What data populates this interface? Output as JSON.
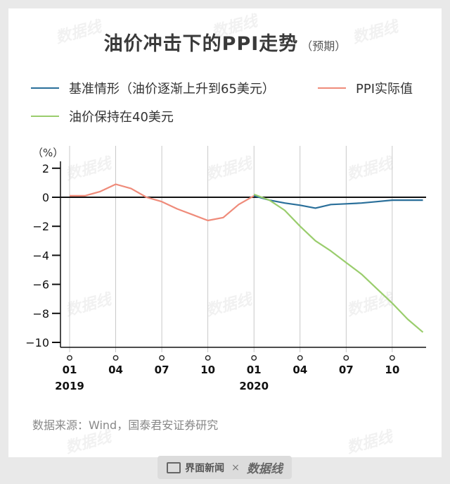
{
  "title": "油价冲击下的PPI走势",
  "subtitle": "（预期）",
  "source": "数据来源：Wind，国泰君安证券研究",
  "footer": {
    "brand1": "界面新闻",
    "sep": "×",
    "brand2": "数据线"
  },
  "watermark": "数据线",
  "colors": {
    "baseline": "#2a6f9a",
    "ppi": "#ef8b7a",
    "oil40": "#9acd6d",
    "axis": "#111111",
    "grid": "#bbbbbb"
  },
  "chart_data": {
    "type": "line",
    "y_unit": "（%）",
    "ylim": [
      -10,
      2
    ],
    "y_ticks": [
      2,
      0,
      -2,
      -4,
      -6,
      -8,
      -10
    ],
    "y_tick_labels": [
      "2",
      "0",
      "−2",
      "−4",
      "−6",
      "−8",
      "−10"
    ],
    "x_ticks": [
      {
        "month": "2019-01",
        "label": "01",
        "year": "2019"
      },
      {
        "month": "2019-04",
        "label": "04",
        "year": ""
      },
      {
        "month": "2019-07",
        "label": "07",
        "year": ""
      },
      {
        "month": "2019-10",
        "label": "10",
        "year": ""
      },
      {
        "month": "2020-01",
        "label": "01",
        "year": "2020"
      },
      {
        "month": "2020-04",
        "label": "04",
        "year": ""
      },
      {
        "month": "2020-07",
        "label": "07",
        "year": ""
      },
      {
        "month": "2020-10",
        "label": "10",
        "year": ""
      }
    ],
    "series": [
      {
        "name": "PPI实际值",
        "color": "#ef8b7a",
        "x": [
          "2019-01",
          "2019-02",
          "2019-03",
          "2019-04",
          "2019-05",
          "2019-06",
          "2019-07",
          "2019-08",
          "2019-09",
          "2019-10",
          "2019-11",
          "2019-12",
          "2020-01"
        ],
        "values": [
          0.1,
          0.1,
          0.4,
          0.9,
          0.6,
          0.0,
          -0.3,
          -0.8,
          -1.2,
          -1.6,
          -1.4,
          -0.5,
          0.1
        ]
      },
      {
        "name": "基准情形（油价逐渐上升到65美元）",
        "color": "#2a6f9a",
        "x": [
          "2020-01",
          "2020-02",
          "2020-03",
          "2020-04",
          "2020-05",
          "2020-06",
          "2020-07",
          "2020-08",
          "2020-09",
          "2020-10",
          "2020-11",
          "2020-12"
        ],
        "values": [
          0.1,
          -0.2,
          -0.4,
          -0.55,
          -0.75,
          -0.5,
          -0.45,
          -0.4,
          -0.3,
          -0.2,
          -0.2,
          -0.2
        ]
      },
      {
        "name": "油价保持在40美元",
        "color": "#9acd6d",
        "x": [
          "2020-01",
          "2020-02",
          "2020-03",
          "2020-04",
          "2020-05",
          "2020-06",
          "2020-07",
          "2020-08",
          "2020-09",
          "2020-10",
          "2020-11",
          "2020-12"
        ],
        "values": [
          0.2,
          -0.2,
          -0.9,
          -2.0,
          -3.0,
          -3.7,
          -4.5,
          -5.3,
          -6.3,
          -7.3,
          -8.4,
          -9.3
        ]
      }
    ],
    "legend": [
      {
        "label": "基准情形（油价逐渐上升到65美元）",
        "color": "#2a6f9a"
      },
      {
        "label": "PPI实际值",
        "color": "#ef8b7a"
      },
      {
        "label": "油价保持在40美元",
        "color": "#9acd6d"
      }
    ]
  }
}
